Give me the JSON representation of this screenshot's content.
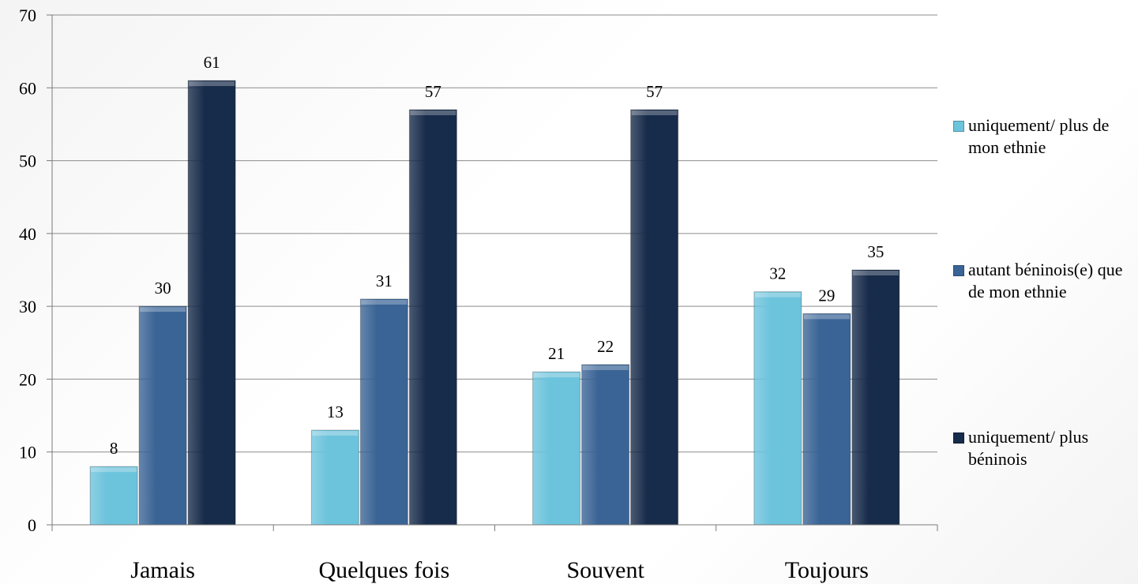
{
  "chart_data": {
    "type": "bar",
    "categories": [
      "Jamais",
      "Quelques fois",
      "Souvent",
      "Toujours"
    ],
    "series": [
      {
        "name": "uniquement/ plus de mon ethnie",
        "values": [
          8,
          13,
          21,
          32
        ],
        "color": "#6cc3dc"
      },
      {
        "name": "autant béninois(e) que de mon ethnie",
        "values": [
          30,
          31,
          22,
          29
        ],
        "color": "#3a6495"
      },
      {
        "name": "uniquement/ plus béninois",
        "values": [
          61,
          57,
          57,
          35
        ],
        "color": "#172b4a"
      }
    ],
    "ylim": [
      0,
      70
    ],
    "yticks": [
      0,
      10,
      20,
      30,
      40,
      50,
      60,
      70
    ],
    "grid": true,
    "legend_position": "right",
    "title": "",
    "xlabel": "",
    "ylabel": ""
  }
}
